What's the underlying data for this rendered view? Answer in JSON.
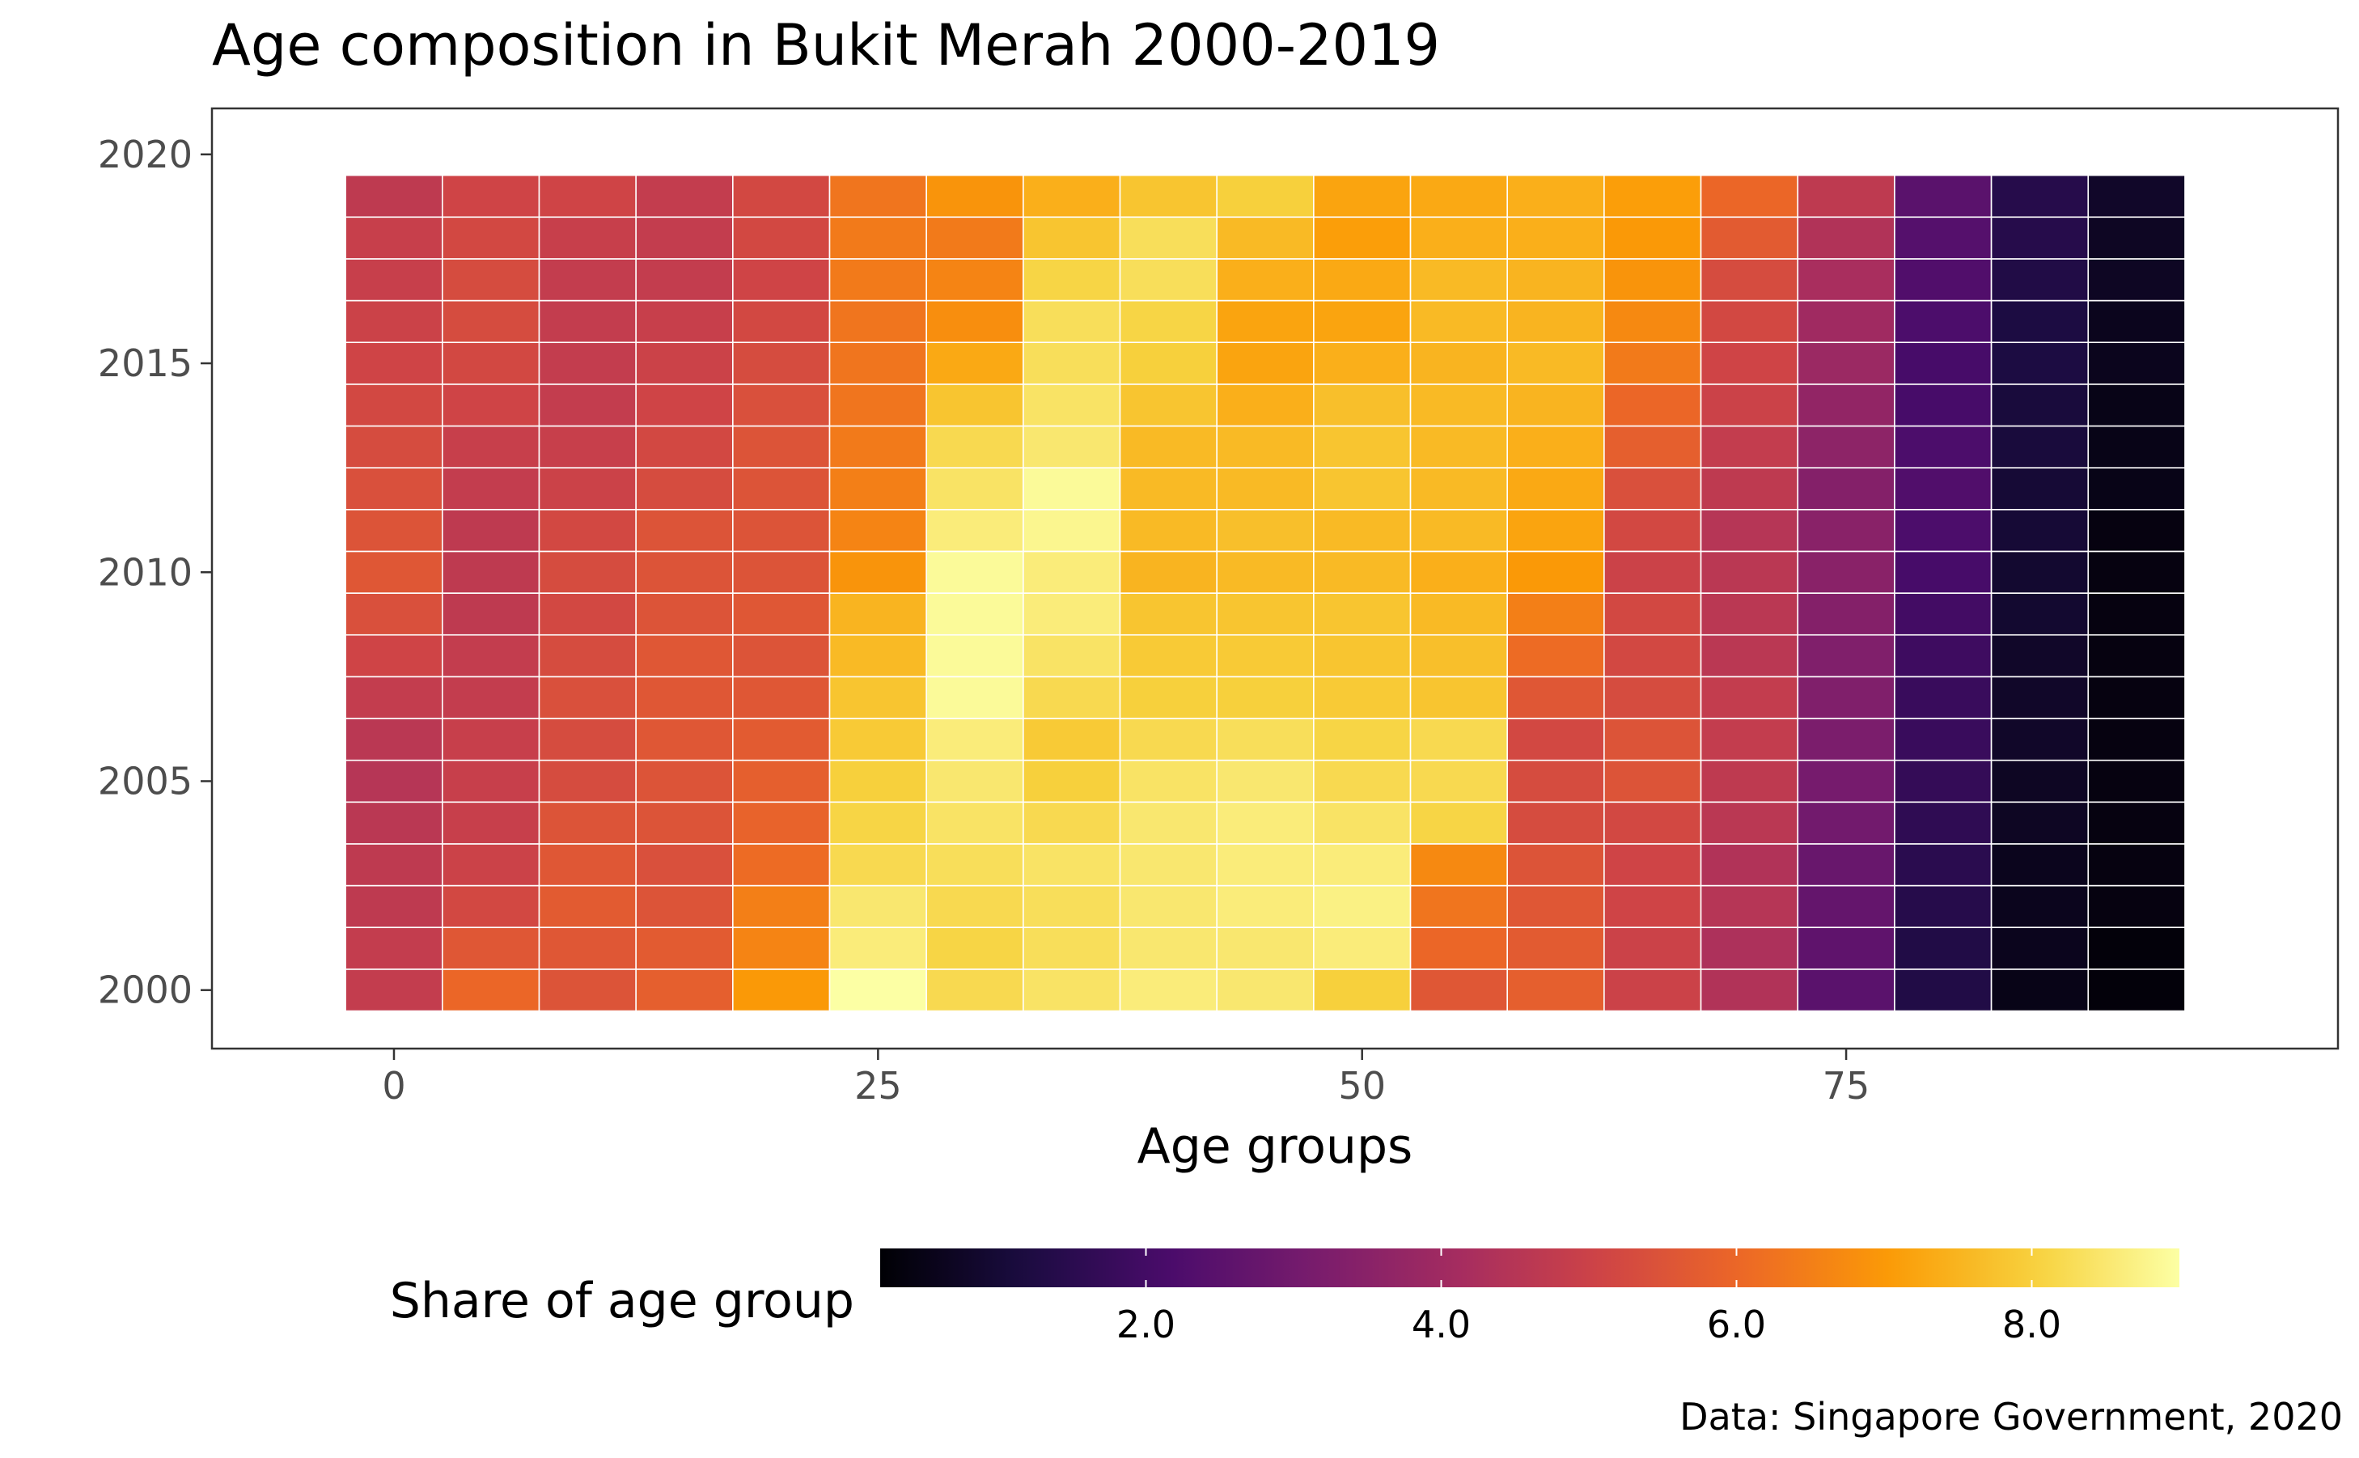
{
  "chart_data": {
    "type": "heatmap",
    "title": "Age composition in Bukit Merah 2000-2019",
    "xlabel": "Age groups",
    "ylabel": "",
    "caption": "Data: Singapore Government, 2020",
    "x": [
      0,
      5,
      10,
      15,
      20,
      25,
      30,
      35,
      40,
      45,
      50,
      55,
      60,
      65,
      70,
      75,
      80,
      85,
      90
    ],
    "y": [
      2000,
      2001,
      2002,
      2003,
      2004,
      2005,
      2006,
      2007,
      2008,
      2009,
      2010,
      2011,
      2012,
      2013,
      2014,
      2015,
      2016,
      2017,
      2018,
      2019
    ],
    "xlim": [
      -9.4,
      100.4
    ],
    "ylim": [
      1998.6,
      2021.1
    ],
    "x_ticks": [
      0,
      25,
      50,
      75
    ],
    "x_tick_labels": [
      "0",
      "25",
      "50",
      "75"
    ],
    "y_ticks": [
      2000,
      2005,
      2010,
      2015,
      2020
    ],
    "y_tick_labels": [
      "2000",
      "2005",
      "2010",
      "2015",
      "2020"
    ],
    "values": [
      [
        4.8,
        6.0,
        5.5,
        5.8,
        7.0,
        9.0,
        8.2,
        8.4,
        8.6,
        8.5,
        8.0,
        5.6,
        5.8,
        5.0,
        4.4,
        2.5,
        1.3,
        0.5,
        0.3
      ],
      [
        4.8,
        5.6,
        5.6,
        5.7,
        6.6,
        8.6,
        8.1,
        8.3,
        8.5,
        8.5,
        8.6,
        6.0,
        5.7,
        5.0,
        4.3,
        2.6,
        1.3,
        0.6,
        0.3
      ],
      [
        4.7,
        5.2,
        5.7,
        5.5,
        6.5,
        8.5,
        8.2,
        8.3,
        8.5,
        8.6,
        8.7,
        6.3,
        5.6,
        5.1,
        4.5,
        2.7,
        1.4,
        0.6,
        0.4
      ],
      [
        4.7,
        5.0,
        5.6,
        5.4,
        6.1,
        8.2,
        8.3,
        8.4,
        8.5,
        8.6,
        8.6,
        6.7,
        5.5,
        5.1,
        4.4,
        2.8,
        1.5,
        0.6,
        0.4
      ],
      [
        4.6,
        4.9,
        5.5,
        5.5,
        5.9,
        8.1,
        8.4,
        8.2,
        8.5,
        8.6,
        8.4,
        8.1,
        5.3,
        5.2,
        4.6,
        3.0,
        1.6,
        0.7,
        0.4
      ],
      [
        4.5,
        4.9,
        5.3,
        5.5,
        5.8,
        8.0,
        8.5,
        8.0,
        8.4,
        8.5,
        8.2,
        8.2,
        5.3,
        5.5,
        4.7,
        3.1,
        1.7,
        0.7,
        0.4
      ],
      [
        4.6,
        4.9,
        5.3,
        5.6,
        5.7,
        7.9,
        8.6,
        7.9,
        8.2,
        8.3,
        8.1,
        8.2,
        5.2,
        5.5,
        4.8,
        3.2,
        1.8,
        0.8,
        0.4
      ],
      [
        4.8,
        4.8,
        5.4,
        5.6,
        5.6,
        7.8,
        8.9,
        8.2,
        8.0,
        8.0,
        7.9,
        7.8,
        5.6,
        5.3,
        4.8,
        3.3,
        1.8,
        0.8,
        0.4
      ],
      [
        5.1,
        4.8,
        5.3,
        5.6,
        5.5,
        7.6,
        8.9,
        8.4,
        7.9,
        7.9,
        7.8,
        7.7,
        6.1,
        5.2,
        4.6,
        3.3,
        1.9,
        0.8,
        0.4
      ],
      [
        5.4,
        4.7,
        5.2,
        5.5,
        5.6,
        7.5,
        8.9,
        8.6,
        7.8,
        7.8,
        7.8,
        7.6,
        6.5,
        5.2,
        4.6,
        3.4,
        2.0,
        0.9,
        0.4
      ],
      [
        5.6,
        4.7,
        5.3,
        5.5,
        5.5,
        6.9,
        8.9,
        8.6,
        7.5,
        7.6,
        7.6,
        7.4,
        7.0,
        5.0,
        4.6,
        3.5,
        2.1,
        0.9,
        0.4
      ],
      [
        5.5,
        4.7,
        5.2,
        5.5,
        5.5,
        6.6,
        8.6,
        8.8,
        7.6,
        7.7,
        7.6,
        7.6,
        7.2,
        5.2,
        4.5,
        3.5,
        2.2,
        1.0,
        0.4
      ],
      [
        5.4,
        4.8,
        5.0,
        5.3,
        5.5,
        6.5,
        8.4,
        8.9,
        7.6,
        7.6,
        7.8,
        7.6,
        7.3,
        5.4,
        4.7,
        3.4,
        2.3,
        1.0,
        0.5
      ],
      [
        5.3,
        4.9,
        4.9,
        5.2,
        5.5,
        6.4,
        8.2,
        8.5,
        7.6,
        7.6,
        7.8,
        7.6,
        7.4,
        5.8,
        4.8,
        3.6,
        2.2,
        1.1,
        0.5
      ],
      [
        5.2,
        5.1,
        4.8,
        5.1,
        5.4,
        6.3,
        7.8,
        8.4,
        7.8,
        7.4,
        7.7,
        7.6,
        7.5,
        6.0,
        5.0,
        3.7,
        2.1,
        1.1,
        0.5
      ],
      [
        5.1,
        5.2,
        4.8,
        5.0,
        5.3,
        6.3,
        7.3,
        8.3,
        8.0,
        7.2,
        7.4,
        7.5,
        7.6,
        6.4,
        5.1,
        3.9,
        2.1,
        1.2,
        0.6
      ],
      [
        5.0,
        5.3,
        4.8,
        4.9,
        5.2,
        6.3,
        6.8,
        8.3,
        8.1,
        7.2,
        7.2,
        7.6,
        7.5,
        6.7,
        5.2,
        4.0,
        2.2,
        1.2,
        0.6
      ],
      [
        4.9,
        5.3,
        4.8,
        4.8,
        5.1,
        6.4,
        6.6,
        8.1,
        8.3,
        7.4,
        7.3,
        7.6,
        7.5,
        6.9,
        5.3,
        4.2,
        2.3,
        1.3,
        0.7
      ],
      [
        4.9,
        5.2,
        4.9,
        4.8,
        5.2,
        6.4,
        6.4,
        7.8,
        8.3,
        7.6,
        7.1,
        7.4,
        7.4,
        7.0,
        5.7,
        4.4,
        2.4,
        1.4,
        0.7
      ],
      [
        4.7,
        5.1,
        5.1,
        4.8,
        5.2,
        6.3,
        6.9,
        7.4,
        7.8,
        8.0,
        7.2,
        7.3,
        7.4,
        7.1,
        6.0,
        4.7,
        2.5,
        1.4,
        0.8
      ]
    ],
    "color_scale": {
      "name": "inferno",
      "min": 0.2,
      "max": 9.0,
      "stops": [
        "#000004",
        "#1b0c41",
        "#4a0c6b",
        "#781c6d",
        "#a52c60",
        "#cf4446",
        "#ed6925",
        "#fb9b06",
        "#f7d13d",
        "#fcffa4"
      ]
    },
    "legend": {
      "title": "Share of age group",
      "position": "bottom",
      "ticks": [
        2.0,
        4.0,
        6.0,
        8.0
      ],
      "tick_labels": [
        "2.0",
        "4.0",
        "6.0",
        "8.0"
      ]
    },
    "grid": false
  }
}
